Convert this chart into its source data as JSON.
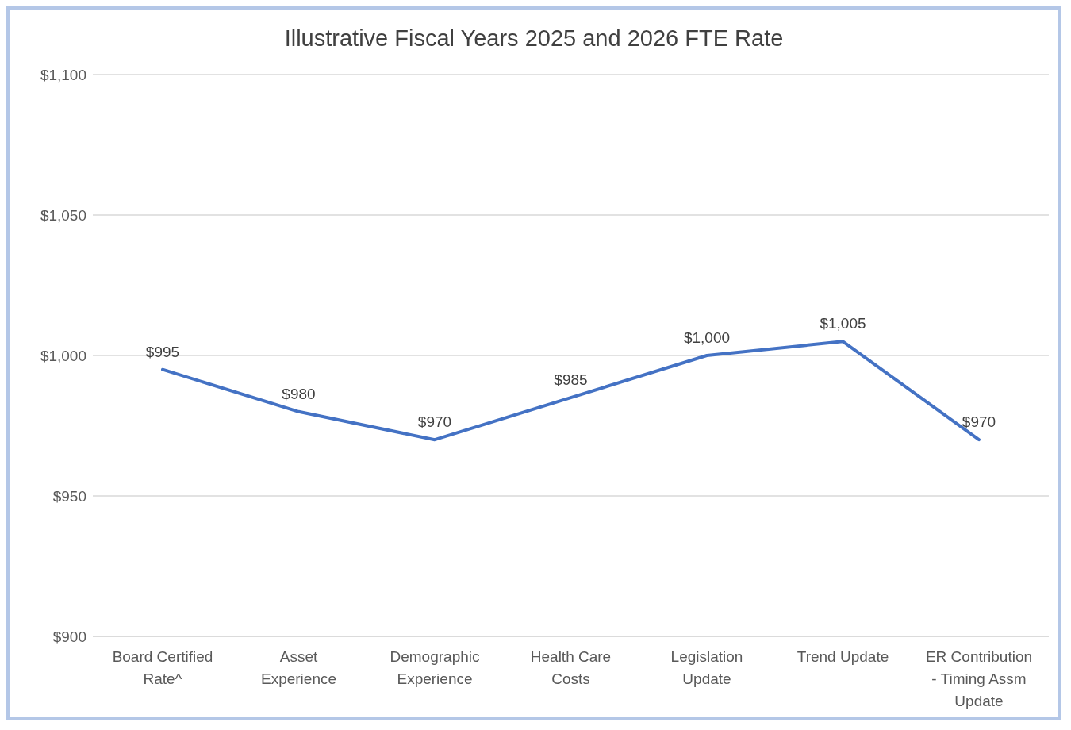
{
  "chart_data": {
    "type": "line",
    "title": "Illustrative Fiscal Years 2025 and 2026 FTE Rate",
    "categories": [
      "Board Certified Rate^",
      "Asset Experience",
      "Demographic Experience",
      "Health Care Costs",
      "Legislation Update",
      "Trend Update",
      "ER Contribution - Timing Assm Update"
    ],
    "series": [
      {
        "color": "#4472c4",
        "values": [
          995,
          980,
          970,
          985,
          1000,
          1005,
          970
        ],
        "value_labels": [
          "$995",
          "$980",
          "$970",
          "$985",
          "$1,000",
          "$1,005",
          "$970"
        ]
      }
    ],
    "ylim": [
      900,
      1100
    ],
    "yticks": [
      {
        "value": 900,
        "label": "$900"
      },
      {
        "value": 950,
        "label": "$950"
      },
      {
        "value": 1000,
        "label": "$1,000"
      },
      {
        "value": 1050,
        "label": "$1,050"
      },
      {
        "value": 1100,
        "label": "$1,100"
      }
    ],
    "grid": "y",
    "legend": false,
    "marker": "none",
    "line_style": "solid"
  }
}
